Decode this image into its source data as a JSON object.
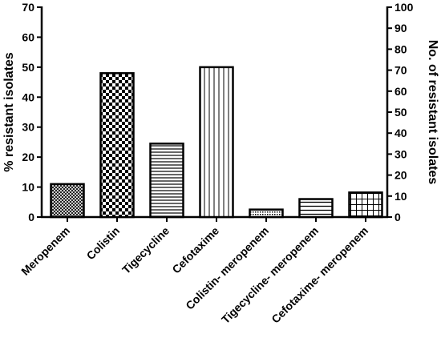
{
  "chart_data": {
    "type": "bar",
    "categories": [
      "Meropenem",
      "Colistin",
      "Tigecycline",
      "Cefotaxime",
      "Colistin- meropenem",
      "Tigecycline- meropenem",
      "Cefotaxime- meropenem"
    ],
    "values": [
      11,
      48,
      24.5,
      50,
      2.5,
      6,
      8.2
    ],
    "ylabel": "% resistant isolates",
    "ylim": [
      0,
      70
    ],
    "yticks": [
      0,
      10,
      20,
      30,
      40,
      50,
      60,
      70
    ],
    "y2label": "No. of resistant isolates",
    "y2lim": [
      0,
      100
    ],
    "y2ticks": [
      0,
      10,
      20,
      30,
      40,
      50,
      60,
      70,
      80,
      90,
      100
    ],
    "patterns": [
      "crosshatch-fine",
      "checker",
      "horizontal-lines",
      "vertical-lines",
      "dense-dots",
      "horizontal-lines-wide",
      "grid"
    ],
    "bar_color": "#000000",
    "grid": false
  }
}
